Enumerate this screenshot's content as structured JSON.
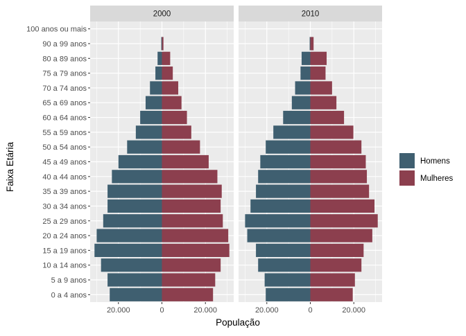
{
  "chart_data": {
    "type": "bar",
    "orientation": "horizontal",
    "style": "population-pyramid",
    "xlabel": "População",
    "ylabel": "Faixa Etária",
    "categories": [
      "0 a 4 anos",
      "5 a 9 anos",
      "10 a 14 anos",
      "15 a 19 anos",
      "20 a 24 anos",
      "25 a 29 anos",
      "30 a 34 anos",
      "35 a 39 anos",
      "40 a 44 anos",
      "45 a 49 anos",
      "50 a 54 anos",
      "55 a 59 anos",
      "60 a 64 anos",
      "65 a 69 anos",
      "70 a 74 anos",
      "75 a 79 anos",
      "80 a 89 anos",
      "90 a 99 anos",
      "100 anos ou mais"
    ],
    "xlim": [
      -33000,
      33000
    ],
    "x_ticks": [
      -20000,
      0,
      20000
    ],
    "x_tick_labels": [
      "20.000",
      "0",
      "20.000"
    ],
    "legend": {
      "position": "right",
      "entries": [
        "Homens",
        "Mulheres"
      ]
    },
    "colors": {
      "Homens": "#3f5f70",
      "Mulheres": "#8c3f4e",
      "panel": "#ebebeb",
      "strip": "#d9d9d9",
      "grid": "#ffffff"
    },
    "panels": [
      {
        "label": "2000",
        "series": [
          {
            "name": "Homens",
            "values": [
              -24000,
              -25000,
              -28000,
              -31000,
              -30000,
              -27000,
              -25000,
              -25000,
              -23000,
              -20000,
              -16000,
              -12000,
              -10000,
              -7500,
              -5500,
              -3000,
              -2000,
              -300,
              0
            ]
          },
          {
            "name": "Mulheres",
            "values": [
              23500,
              24500,
              27000,
              31000,
              30500,
              28000,
              27000,
              27500,
              25500,
              21500,
              17500,
              13500,
              11500,
              9000,
              7500,
              5000,
              3800,
              700,
              0
            ]
          }
        ]
      },
      {
        "label": "2010",
        "series": [
          {
            "name": "Homens",
            "values": [
              -20500,
              -21000,
              -24000,
              -25000,
              -29000,
              -30000,
              -27500,
              -25000,
              -24000,
              -23000,
              -20500,
              -17000,
              -12500,
              -8500,
              -7000,
              -4500,
              -4000,
              -300,
              0
            ]
          },
          {
            "name": "Mulheres",
            "values": [
              19500,
              20500,
              23500,
              24500,
              28500,
              31000,
              29500,
              27000,
              26000,
              25500,
              23500,
              19800,
              15500,
              12000,
              10000,
              7000,
              7500,
              1500,
              0
            ]
          }
        ]
      }
    ]
  }
}
